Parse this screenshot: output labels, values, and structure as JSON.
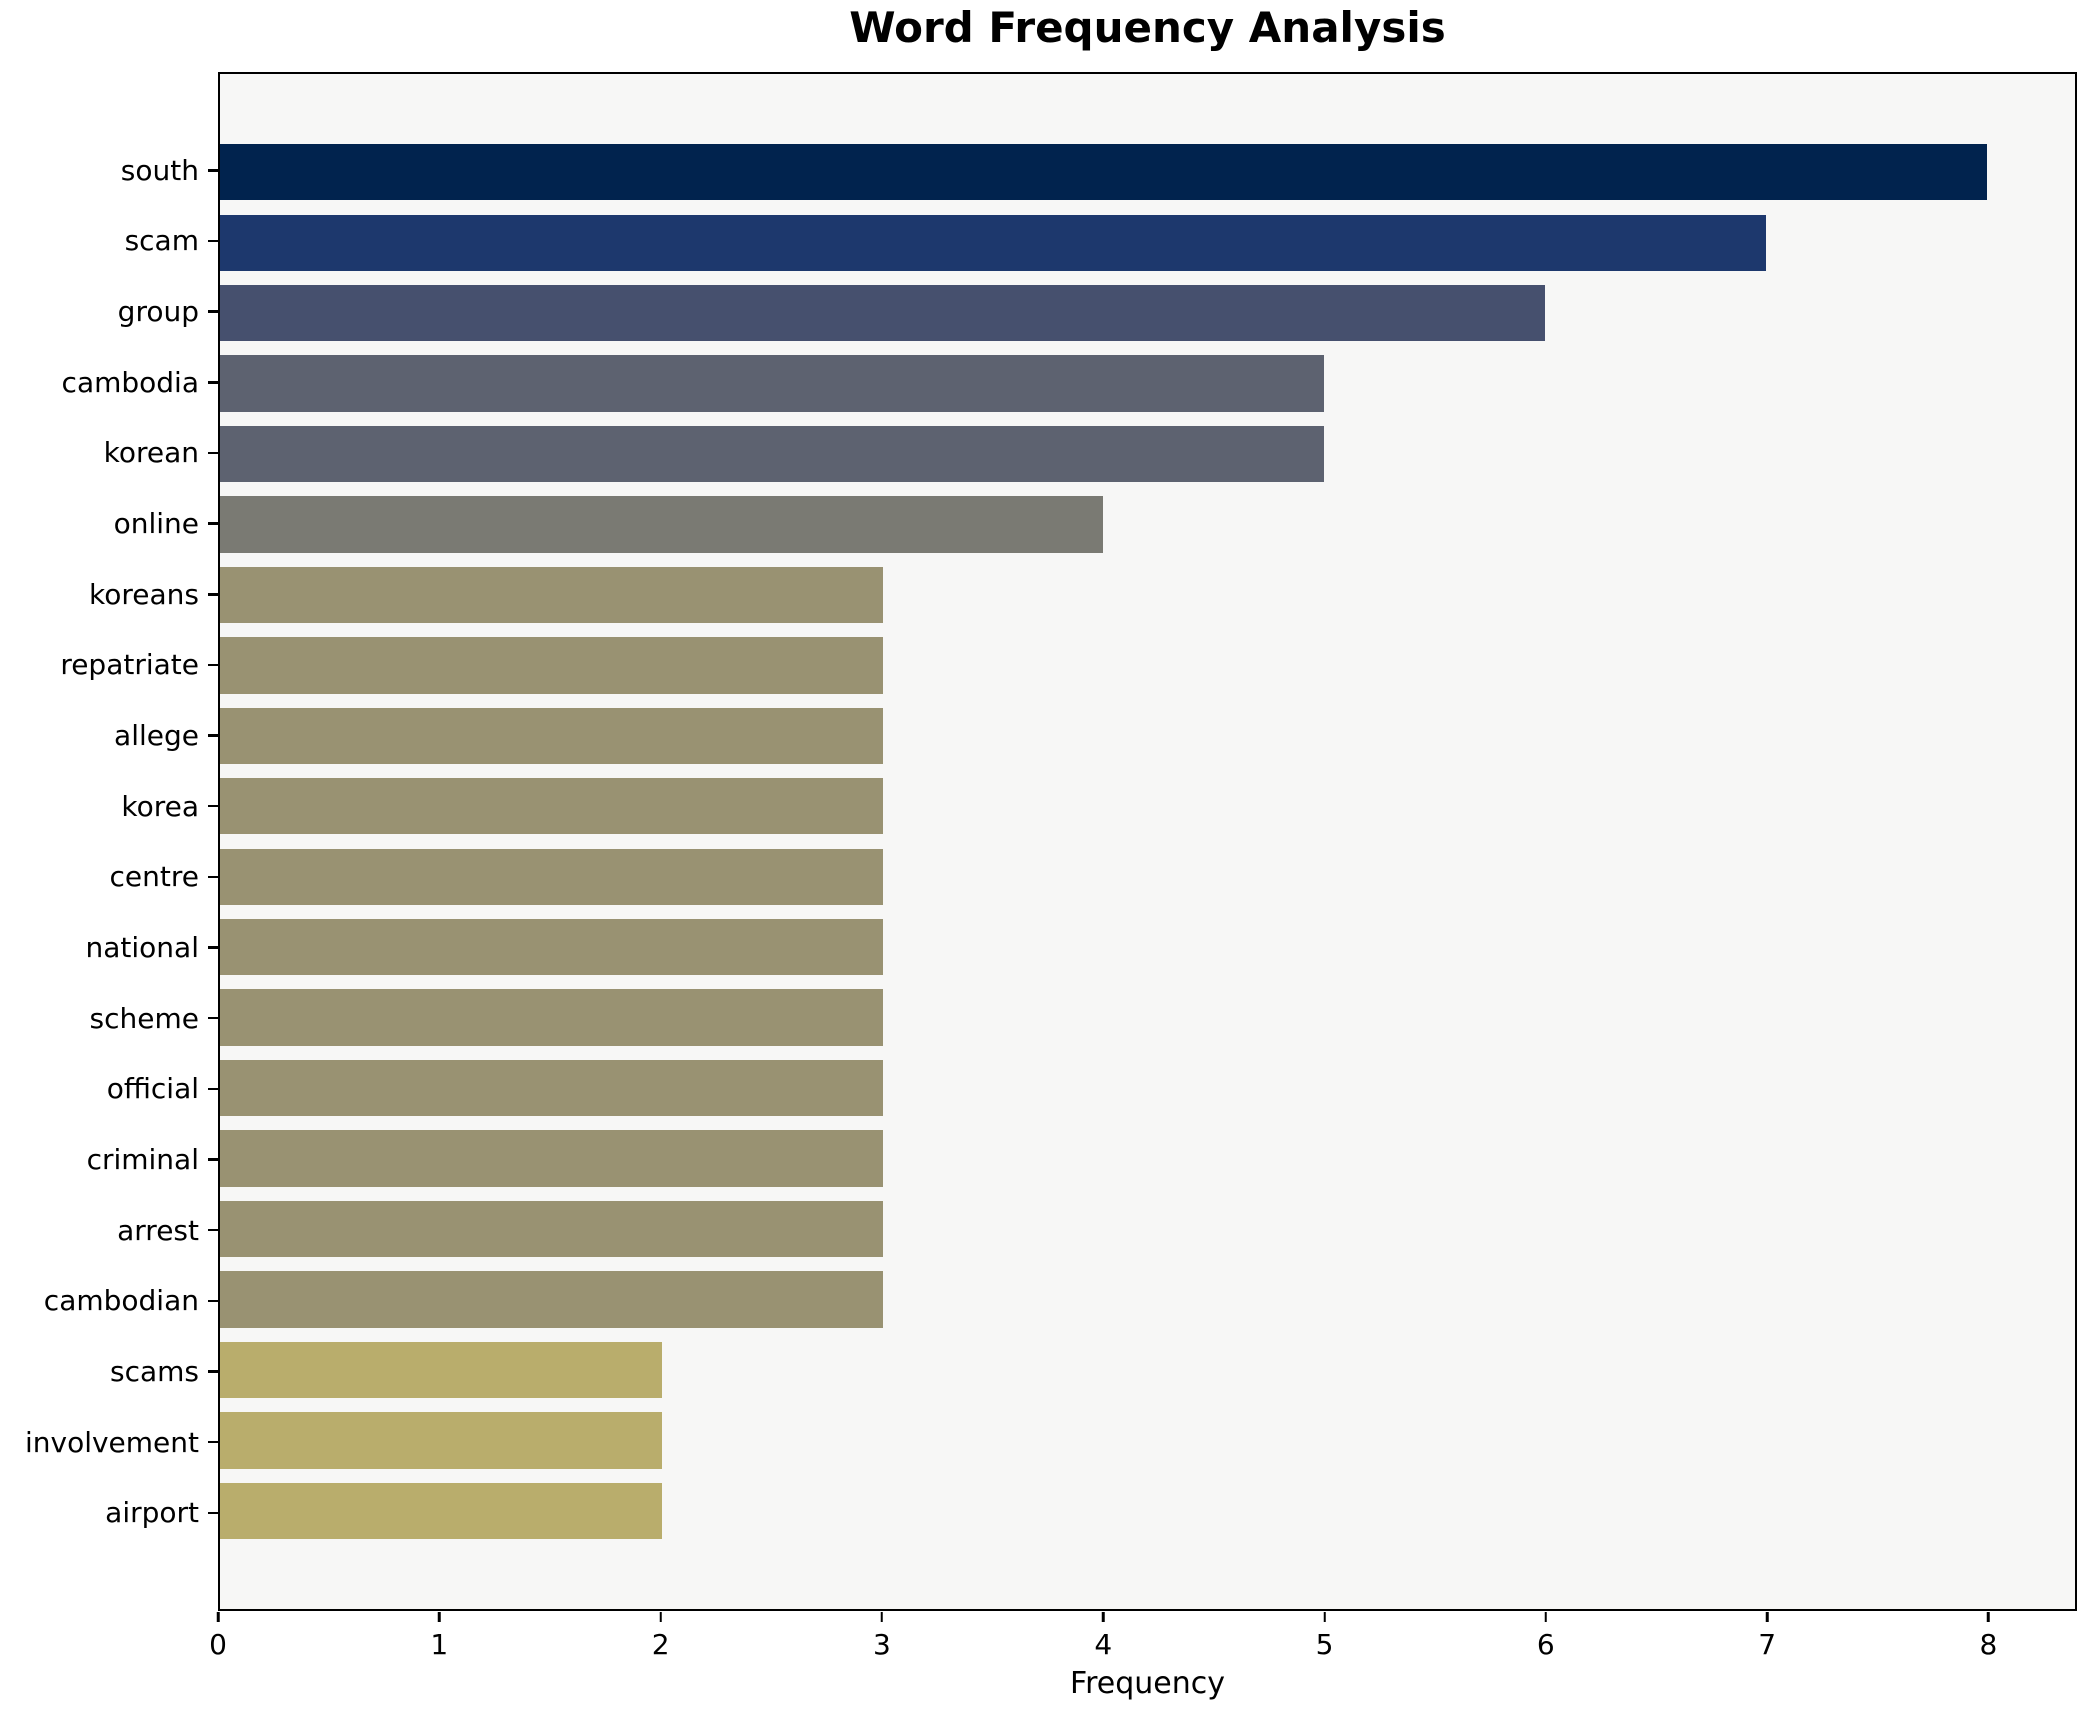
{
  "chart": {
    "title": "Word Frequency Analysis",
    "xlabel": "Frequency"
  },
  "chart_data": {
    "type": "bar",
    "orientation": "horizontal",
    "title": "Word Frequency Analysis",
    "xlabel": "Frequency",
    "ylabel": "",
    "categories": [
      "south",
      "scam",
      "group",
      "cambodia",
      "korean",
      "online",
      "koreans",
      "repatriate",
      "allege",
      "korea",
      "centre",
      "national",
      "scheme",
      "official",
      "criminal",
      "arrest",
      "cambodian",
      "scams",
      "involvement",
      "airport"
    ],
    "values": [
      8,
      7,
      6,
      5,
      5,
      4,
      3,
      3,
      3,
      3,
      3,
      3,
      3,
      3,
      3,
      3,
      3,
      2,
      2,
      2
    ],
    "xticks": [
      "0",
      "1",
      "2",
      "3",
      "4",
      "5",
      "6",
      "7",
      "8"
    ],
    "xtick_values": [
      0,
      1,
      2,
      3,
      4,
      5,
      6,
      7,
      8
    ],
    "xlim": [
      0,
      8.4
    ],
    "grid": false,
    "legend_position": "none",
    "bar_colors": [
      "#01234e",
      "#1d386d",
      "#46506e",
      "#5d6270",
      "#5d6270",
      "#7a7a73",
      "#999272",
      "#999272",
      "#999272",
      "#999272",
      "#999272",
      "#999272",
      "#999272",
      "#999272",
      "#999272",
      "#999272",
      "#999272",
      "#b9ad6c",
      "#b9ad6c",
      "#b9ad6c"
    ],
    "colors_by_value": {
      "8": "#01234e",
      "7": "#1d386d",
      "6": "#46506e",
      "5": "#5d6270",
      "4": "#7a7a73",
      "3": "#999272",
      "2": "#b9ad6c"
    },
    "plot_background": "#f7f7f6",
    "figure_background": "#ffffff",
    "spine_color": "#000000"
  }
}
